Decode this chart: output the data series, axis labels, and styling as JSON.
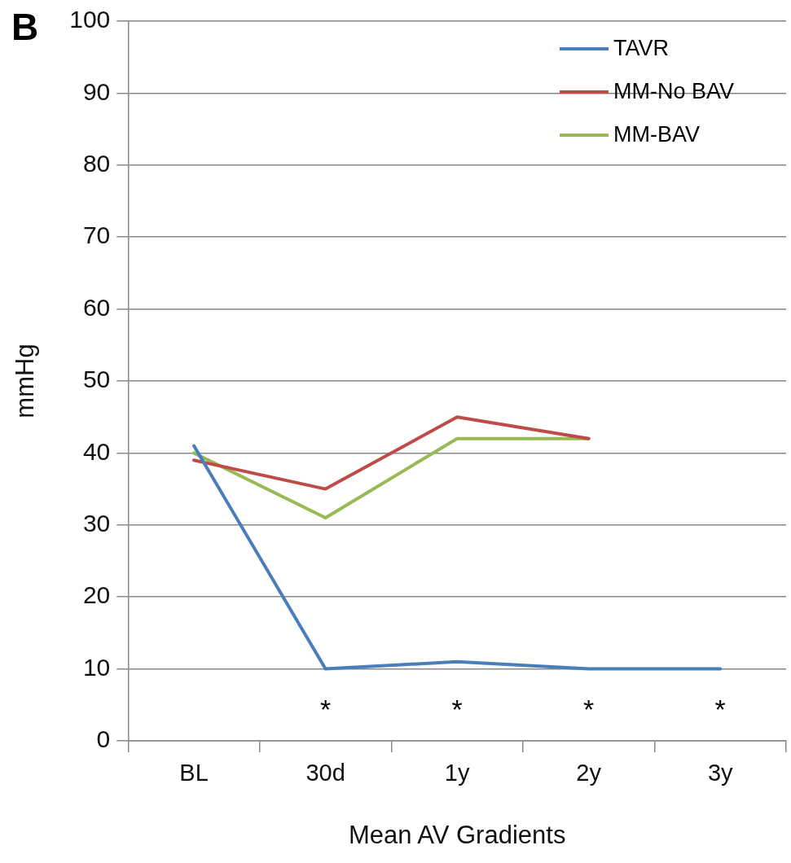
{
  "chart_data": {
    "type": "line",
    "xlabel": "Mean AV Gradients",
    "ylabel": "mmHg",
    "categories": [
      "BL",
      "30d",
      "1y",
      "2y",
      "3y"
    ],
    "series": [
      {
        "name": "TAVR",
        "color": "#4a7ebb",
        "values": [
          41,
          10,
          11,
          10,
          10
        ]
      },
      {
        "name": "MM-No BAV",
        "color": "#be4b48",
        "values": [
          39,
          35,
          45,
          42,
          null
        ]
      },
      {
        "name": "MM-BAV",
        "color": "#98b954",
        "values": [
          40,
          31,
          42,
          42,
          null
        ]
      }
    ],
    "ylim": [
      0,
      100
    ],
    "yticks": [
      0,
      10,
      20,
      30,
      40,
      50,
      60,
      70,
      80,
      90,
      100
    ],
    "grid": "y",
    "legend": "top right",
    "marker": "none",
    "line_style": "solid",
    "annotations": [
      "B",
      "*",
      "*",
      "*",
      "*"
    ]
  }
}
